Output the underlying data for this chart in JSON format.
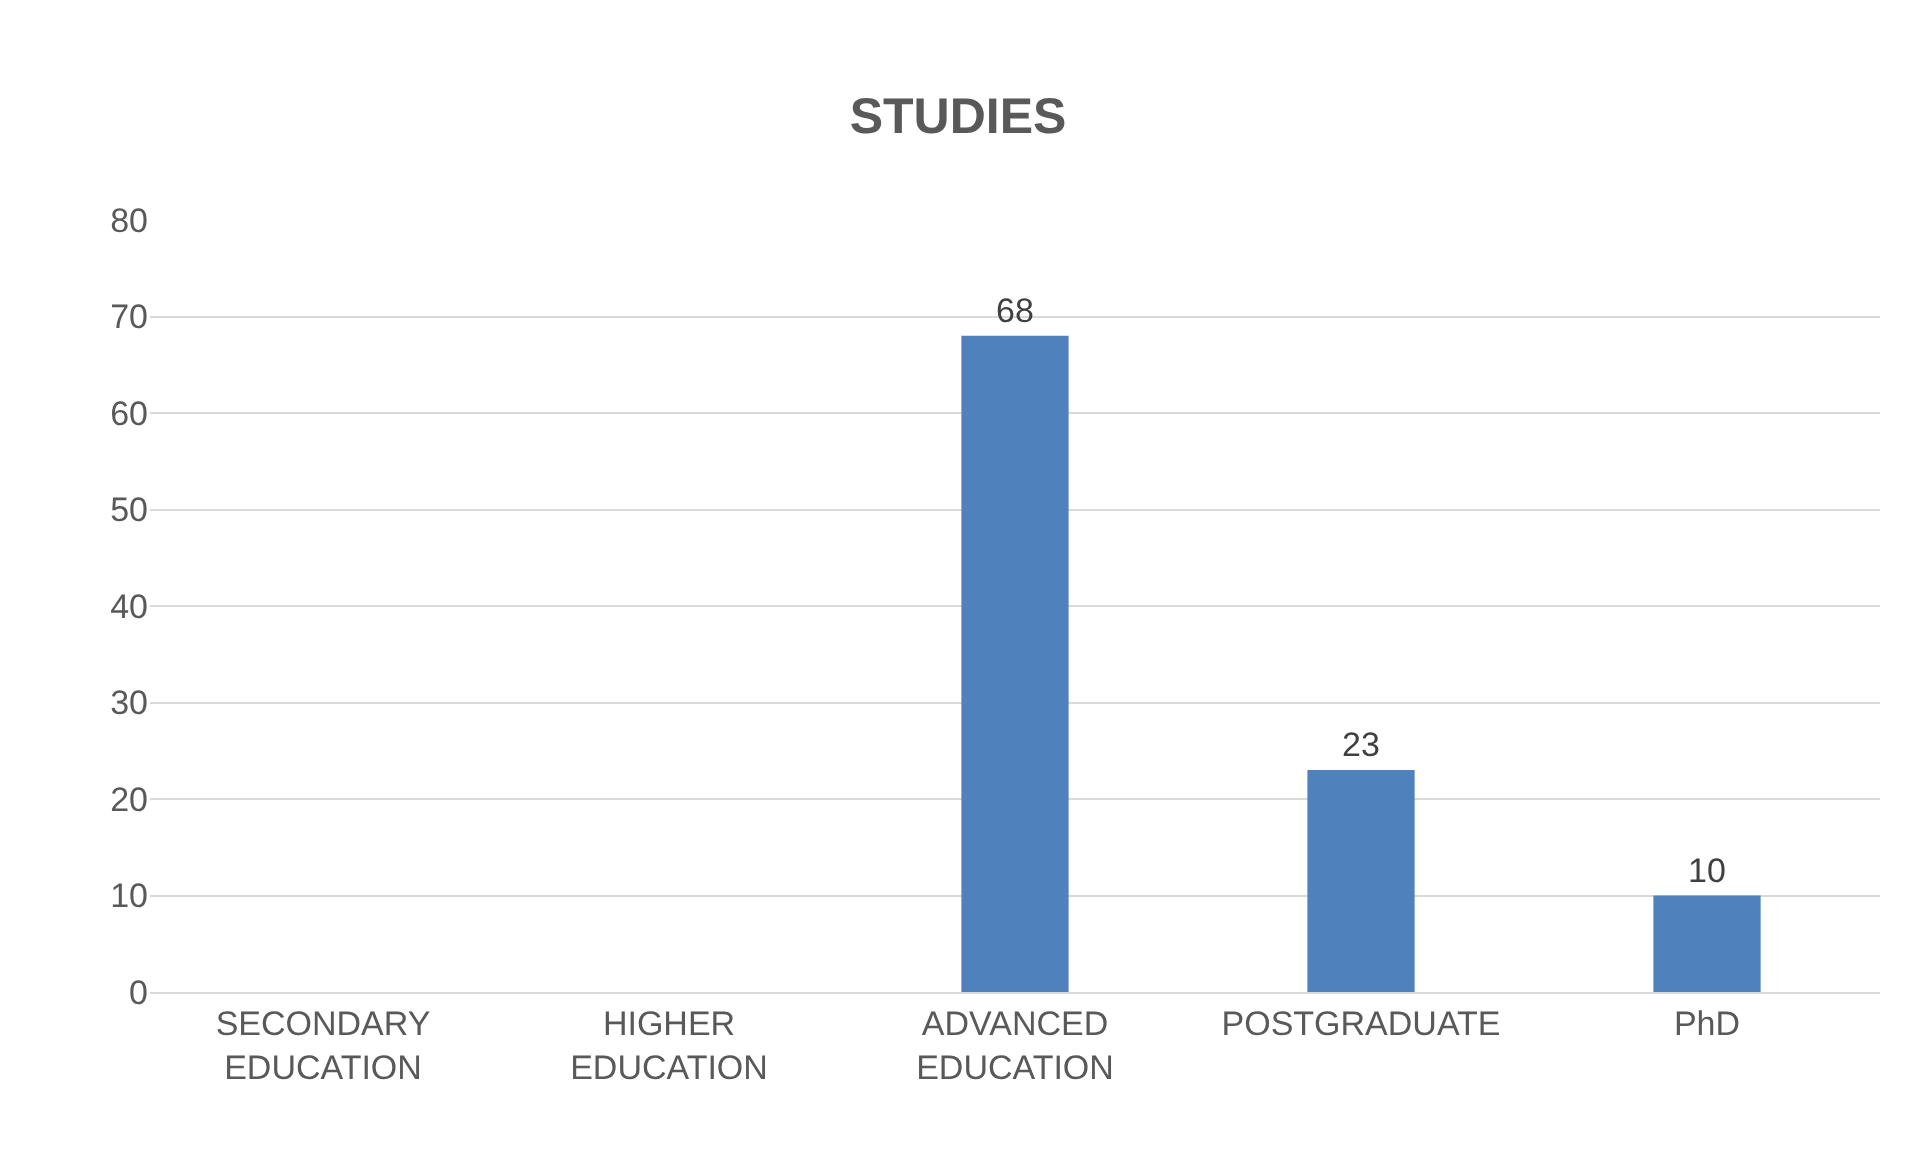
{
  "chart_data": {
    "type": "bar",
    "title": "STUDIES",
    "categories": [
      "SECONDARY EDUCATION",
      "HIGHER EDUCATION",
      "ADVANCED EDUCATION",
      "POSTGRADUATE",
      "PhD"
    ],
    "values": [
      0,
      0,
      68,
      23,
      10
    ],
    "value_labels": [
      null,
      null,
      "68",
      "23",
      "10"
    ],
    "color": "#4f81bd",
    "ylim": [
      0,
      80
    ],
    "yticks": [
      0,
      10,
      20,
      30,
      40,
      50,
      60,
      70,
      80
    ],
    "grid": "y",
    "legend": false
  }
}
